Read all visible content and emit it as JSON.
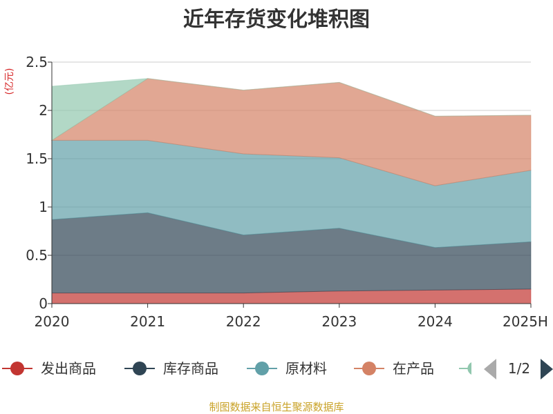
{
  "title": "近年存货变化堆积图",
  "unit_label": "(亿元)",
  "source": "制图数据来自恒生聚源数据库",
  "legend_page": "1/2",
  "chart_data": {
    "type": "area",
    "stacked": true,
    "title": "近年存货变化堆积图",
    "ylabel": "(亿元)",
    "x": [
      "2020",
      "2021",
      "2022",
      "2023",
      "2024",
      "2025H"
    ],
    "ylim": [
      0,
      2.5
    ],
    "yticks": [
      0,
      0.5,
      1,
      1.5,
      2,
      2.5
    ],
    "ytick_labels": [
      "0",
      "0.5",
      "1",
      "1.5",
      "2",
      "2.5"
    ],
    "grid": true,
    "legend_position": "bottom",
    "series": [
      {
        "name": "发出商品",
        "color": "#c23531",
        "values": [
          0.11,
          0.11,
          0.11,
          0.13,
          0.14,
          0.15
        ]
      },
      {
        "name": "库存商品",
        "color": "#2f4554",
        "values": [
          0.76,
          0.83,
          0.6,
          0.65,
          0.44,
          0.49
        ]
      },
      {
        "name": "原材料",
        "color": "#61a0a8",
        "values": [
          0.82,
          0.75,
          0.84,
          0.73,
          0.64,
          0.74
        ]
      },
      {
        "name": "在产品",
        "color": "#d48265",
        "values": [
          0.0,
          0.64,
          0.66,
          0.78,
          0.72,
          0.57
        ]
      },
      {
        "name": "",
        "color": "#91c7ae",
        "values": [
          0.56,
          0.0,
          0.0,
          0.0,
          0.0,
          0.0
        ]
      }
    ]
  }
}
